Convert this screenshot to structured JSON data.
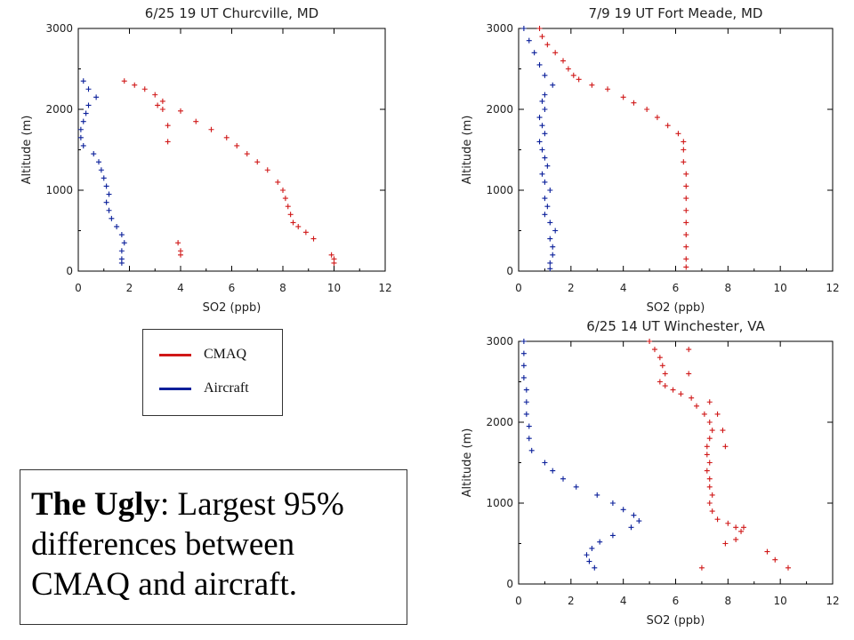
{
  "legend": {
    "entries": [
      {
        "label": "CMAQ",
        "color": "#d01818"
      },
      {
        "label": "Aircraft",
        "color": "#0a1f9a"
      }
    ]
  },
  "caption": {
    "bold": "The Ugly",
    "rest": ": Largest 95% differences between CMAQ and aircraft."
  },
  "chart_data": [
    {
      "type": "scatter",
      "title": "6/25    19 UT Churcville, MD",
      "xlabel": "SO2 (ppb)",
      "ylabel": "Altitude (m)",
      "xlim": [
        0,
        12
      ],
      "ylim": [
        0,
        3000
      ],
      "xticks": [
        0,
        2,
        4,
        6,
        8,
        10,
        12
      ],
      "yticks": [
        0,
        1000,
        2000,
        3000
      ],
      "series": [
        {
          "name": "CMAQ",
          "color": "#d01818",
          "points": [
            [
              1.8,
              2350
            ],
            [
              2.2,
              2300
            ],
            [
              2.6,
              2250
            ],
            [
              3.0,
              2180
            ],
            [
              3.3,
              2100
            ],
            [
              3.1,
              2050
            ],
            [
              3.3,
              2000
            ],
            [
              3.5,
              1800
            ],
            [
              3.5,
              1600
            ],
            [
              4.0,
              1980
            ],
            [
              4.6,
              1850
            ],
            [
              5.2,
              1750
            ],
            [
              5.8,
              1650
            ],
            [
              6.2,
              1550
            ],
            [
              6.6,
              1450
            ],
            [
              7.0,
              1350
            ],
            [
              7.4,
              1250
            ],
            [
              7.8,
              1100
            ],
            [
              8.0,
              1000
            ],
            [
              8.1,
              900
            ],
            [
              8.2,
              800
            ],
            [
              8.3,
              700
            ],
            [
              8.4,
              600
            ],
            [
              8.6,
              550
            ],
            [
              8.9,
              480
            ],
            [
              9.2,
              400
            ],
            [
              9.9,
              200
            ],
            [
              10.0,
              150
            ],
            [
              10.0,
              100
            ],
            [
              3.9,
              350
            ],
            [
              4.0,
              250
            ],
            [
              4.0,
              200
            ]
          ]
        },
        {
          "name": "Aircraft",
          "color": "#0a1f9a",
          "points": [
            [
              0.2,
              2350
            ],
            [
              0.4,
              2250
            ],
            [
              0.7,
              2150
            ],
            [
              0.4,
              2050
            ],
            [
              0.3,
              1950
            ],
            [
              0.2,
              1850
            ],
            [
              0.1,
              1750
            ],
            [
              0.1,
              1650
            ],
            [
              0.2,
              1550
            ],
            [
              0.6,
              1450
            ],
            [
              0.8,
              1350
            ],
            [
              0.9,
              1250
            ],
            [
              1.0,
              1150
            ],
            [
              1.1,
              1050
            ],
            [
              1.2,
              950
            ],
            [
              1.1,
              850
            ],
            [
              1.2,
              750
            ],
            [
              1.3,
              650
            ],
            [
              1.5,
              550
            ],
            [
              1.7,
              450
            ],
            [
              1.8,
              350
            ],
            [
              1.7,
              250
            ],
            [
              1.7,
              150
            ],
            [
              1.7,
              100
            ]
          ]
        }
      ]
    },
    {
      "type": "scatter",
      "title": "7/9    19 UT Fort Meade, MD",
      "xlabel": "SO2 (ppb)",
      "ylabel": "Altitude (m)",
      "xlim": [
        0,
        12
      ],
      "ylim": [
        0,
        3000
      ],
      "xticks": [
        0,
        2,
        4,
        6,
        8,
        10,
        12
      ],
      "yticks": [
        0,
        1000,
        2000,
        3000
      ],
      "series": [
        {
          "name": "CMAQ",
          "color": "#d01818",
          "points": [
            [
              0.8,
              3000
            ],
            [
              0.9,
              2900
            ],
            [
              1.1,
              2800
            ],
            [
              1.4,
              2700
            ],
            [
              1.7,
              2600
            ],
            [
              1.9,
              2500
            ],
            [
              2.1,
              2420
            ],
            [
              2.3,
              2370
            ],
            [
              2.8,
              2300
            ],
            [
              3.4,
              2250
            ],
            [
              4.0,
              2150
            ],
            [
              4.4,
              2080
            ],
            [
              4.9,
              2000
            ],
            [
              5.3,
              1900
            ],
            [
              5.7,
              1800
            ],
            [
              6.1,
              1700
            ],
            [
              6.3,
              1600
            ],
            [
              6.3,
              1500
            ],
            [
              6.3,
              1350
            ],
            [
              6.4,
              1200
            ],
            [
              6.4,
              1050
            ],
            [
              6.4,
              900
            ],
            [
              6.4,
              750
            ],
            [
              6.4,
              600
            ],
            [
              6.4,
              450
            ],
            [
              6.4,
              300
            ],
            [
              6.4,
              150
            ],
            [
              6.4,
              50
            ]
          ]
        },
        {
          "name": "Aircraft",
          "color": "#0a1f9a",
          "points": [
            [
              0.2,
              3000
            ],
            [
              0.4,
              2850
            ],
            [
              0.6,
              2700
            ],
            [
              0.8,
              2550
            ],
            [
              1.0,
              2420
            ],
            [
              1.3,
              2300
            ],
            [
              1.0,
              2180
            ],
            [
              0.9,
              2100
            ],
            [
              1.0,
              2000
            ],
            [
              0.8,
              1900
            ],
            [
              0.9,
              1800
            ],
            [
              1.0,
              1700
            ],
            [
              0.8,
              1600
            ],
            [
              0.9,
              1500
            ],
            [
              1.0,
              1400
            ],
            [
              1.1,
              1300
            ],
            [
              0.9,
              1200
            ],
            [
              1.0,
              1100
            ],
            [
              1.2,
              1000
            ],
            [
              1.0,
              900
            ],
            [
              1.1,
              800
            ],
            [
              1.0,
              700
            ],
            [
              1.2,
              600
            ],
            [
              1.4,
              500
            ],
            [
              1.2,
              400
            ],
            [
              1.3,
              300
            ],
            [
              1.3,
              200
            ],
            [
              1.2,
              100
            ],
            [
              1.2,
              30
            ]
          ]
        }
      ]
    },
    {
      "type": "scatter",
      "title": "6/25    14 UT Winchester, VA",
      "xlabel": "SO2 (ppb)",
      "ylabel": "Altitude (m)",
      "xlim": [
        0,
        12
      ],
      "ylim": [
        0,
        3000
      ],
      "xticks": [
        0,
        2,
        4,
        6,
        8,
        10,
        12
      ],
      "yticks": [
        0,
        1000,
        2000,
        3000
      ],
      "series": [
        {
          "name": "CMAQ",
          "color": "#d01818",
          "points": [
            [
              5.0,
              3000
            ],
            [
              5.2,
              2900
            ],
            [
              5.4,
              2800
            ],
            [
              5.5,
              2700
            ],
            [
              5.6,
              2600
            ],
            [
              5.4,
              2500
            ],
            [
              5.6,
              2450
            ],
            [
              5.9,
              2400
            ],
            [
              6.2,
              2350
            ],
            [
              6.6,
              2300
            ],
            [
              6.8,
              2200
            ],
            [
              7.1,
              2100
            ],
            [
              7.3,
              2000
            ],
            [
              7.4,
              1900
            ],
            [
              7.3,
              1800
            ],
            [
              7.2,
              1700
            ],
            [
              7.2,
              1600
            ],
            [
              7.3,
              1500
            ],
            [
              7.2,
              1400
            ],
            [
              7.3,
              1300
            ],
            [
              7.3,
              1200
            ],
            [
              7.4,
              1100
            ],
            [
              7.3,
              1000
            ],
            [
              7.4,
              900
            ],
            [
              7.6,
              800
            ],
            [
              8.0,
              750
            ],
            [
              8.3,
              700
            ],
            [
              8.5,
              650
            ],
            [
              8.3,
              550
            ],
            [
              7.9,
              500
            ],
            [
              9.5,
              400
            ],
            [
              9.8,
              300
            ],
            [
              10.3,
              200
            ],
            [
              7.0,
              200
            ],
            [
              6.5,
              2900
            ],
            [
              6.5,
              2600
            ],
            [
              7.3,
              2250
            ],
            [
              7.6,
              2100
            ],
            [
              7.8,
              1900
            ],
            [
              7.9,
              1700
            ],
            [
              8.6,
              700
            ]
          ]
        },
        {
          "name": "Aircraft",
          "color": "#0a1f9a",
          "points": [
            [
              0.2,
              3000
            ],
            [
              0.2,
              2850
            ],
            [
              0.2,
              2700
            ],
            [
              0.2,
              2550
            ],
            [
              0.3,
              2400
            ],
            [
              0.3,
              2250
            ],
            [
              0.3,
              2100
            ],
            [
              0.4,
              1950
            ],
            [
              0.4,
              1800
            ],
            [
              0.5,
              1650
            ],
            [
              1.0,
              1500
            ],
            [
              1.3,
              1400
            ],
            [
              1.7,
              1300
            ],
            [
              2.2,
              1200
            ],
            [
              3.0,
              1100
            ],
            [
              3.6,
              1000
            ],
            [
              4.0,
              920
            ],
            [
              4.4,
              850
            ],
            [
              4.6,
              780
            ],
            [
              4.3,
              700
            ],
            [
              3.6,
              600
            ],
            [
              3.1,
              520
            ],
            [
              2.8,
              440
            ],
            [
              2.6,
              360
            ],
            [
              2.7,
              280
            ],
            [
              2.9,
              200
            ]
          ]
        }
      ]
    }
  ]
}
